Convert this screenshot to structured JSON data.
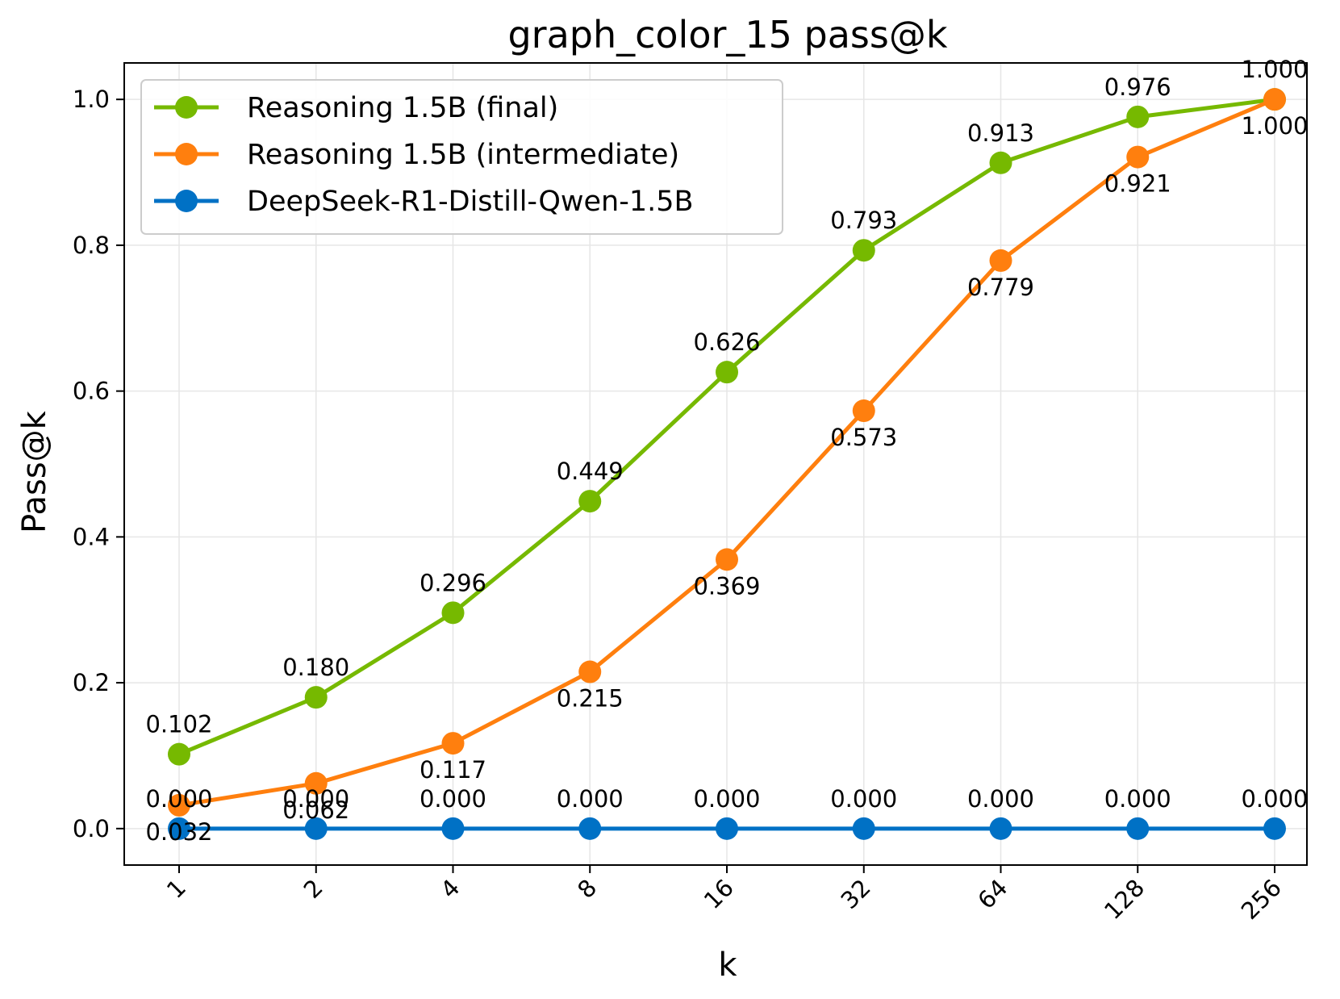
{
  "chart_data": {
    "type": "line",
    "title": "graph_color_15 pass@k",
    "xlabel": "k",
    "ylabel": "Pass@k",
    "x_scale": "log2",
    "categories": [
      "1",
      "2",
      "4",
      "8",
      "16",
      "32",
      "64",
      "128",
      "256"
    ],
    "ylim": [
      -0.05,
      1.05
    ],
    "yticks": [
      0.0,
      0.2,
      0.4,
      0.6,
      0.8,
      1.0
    ],
    "ytick_labels": [
      "0.0",
      "0.2",
      "0.4",
      "0.6",
      "0.8",
      "1.0"
    ],
    "grid": true,
    "legend_position": "top-left",
    "series": [
      {
        "name": "Reasoning 1.5B (final)",
        "color": "#76b900",
        "values": [
          0.102,
          0.18,
          0.296,
          0.449,
          0.626,
          0.793,
          0.913,
          0.976,
          1.0
        ],
        "labels": [
          "0.102",
          "0.180",
          "0.296",
          "0.449",
          "0.626",
          "0.793",
          "0.913",
          "0.976",
          "1.000"
        ],
        "label_placement": "above"
      },
      {
        "name": "Reasoning 1.5B (intermediate)",
        "color": "#ff7f0e",
        "values": [
          0.032,
          0.062,
          0.117,
          0.215,
          0.369,
          0.573,
          0.779,
          0.921,
          1.0
        ],
        "labels": [
          "0.032",
          "0.062",
          "0.117",
          "0.215",
          "0.369",
          "0.573",
          "0.779",
          "0.921",
          "1.000"
        ],
        "label_placement": "below"
      },
      {
        "name": "DeepSeek-R1-Distill-Qwen-1.5B",
        "color": "#0071c5",
        "values": [
          0.0,
          0.0,
          0.0,
          0.0,
          0.0,
          0.0,
          0.0,
          0.0,
          0.0
        ],
        "labels": [
          "0.000",
          "0.000",
          "0.000",
          "0.000",
          "0.000",
          "0.000",
          "0.000",
          "0.000",
          "0.000"
        ],
        "label_placement": "above"
      }
    ]
  }
}
